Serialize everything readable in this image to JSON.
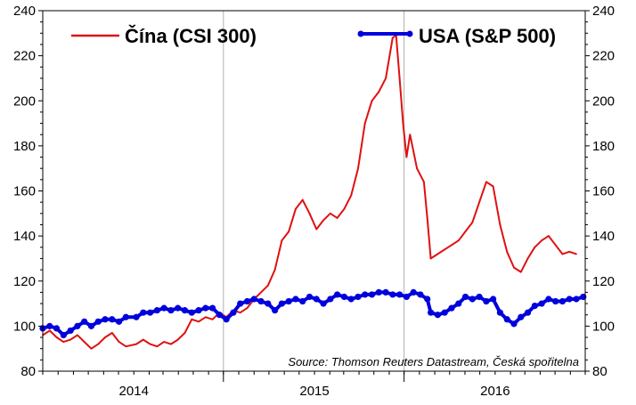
{
  "chart_data": {
    "type": "line",
    "title": "",
    "xlabel": "",
    "ylabel": "",
    "ylim": [
      80,
      240
    ],
    "y_ticks": [
      80,
      100,
      120,
      140,
      160,
      180,
      200,
      220,
      240
    ],
    "xlim": [
      "2013-07-01",
      "2016-07-01"
    ],
    "x_tick_labels": [
      {
        "label": "2014",
        "date": "2014-01-01"
      },
      {
        "label": "2015",
        "date": "2015-01-01"
      },
      {
        "label": "2016",
        "date": "2016-01-01"
      }
    ],
    "x_gridlines": [
      "2014-07-01",
      "2015-07-01"
    ],
    "grid": "vertical",
    "legend_position": "top",
    "source": "Source: Thomson Reuters Datastream, Česká spořitelna",
    "series": [
      {
        "name": "Čína (CSI 300)",
        "color": "#e01010",
        "marker": "none",
        "points": [
          [
            "2013-07-01",
            96
          ],
          [
            "2013-07-15",
            98
          ],
          [
            "2013-07-29",
            95
          ],
          [
            "2013-08-12",
            93
          ],
          [
            "2013-08-26",
            94
          ],
          [
            "2013-09-09",
            96
          ],
          [
            "2013-09-23",
            93
          ],
          [
            "2013-10-07",
            90
          ],
          [
            "2013-10-21",
            92
          ],
          [
            "2013-11-04",
            95
          ],
          [
            "2013-11-18",
            97
          ],
          [
            "2013-12-02",
            93
          ],
          [
            "2013-12-16",
            91
          ],
          [
            "2014-01-06",
            92
          ],
          [
            "2014-01-20",
            94
          ],
          [
            "2014-02-03",
            92
          ],
          [
            "2014-02-17",
            91
          ],
          [
            "2014-03-03",
            93
          ],
          [
            "2014-03-17",
            92
          ],
          [
            "2014-03-31",
            94
          ],
          [
            "2014-04-14",
            97
          ],
          [
            "2014-04-28",
            103
          ],
          [
            "2014-05-12",
            102
          ],
          [
            "2014-05-26",
            104
          ],
          [
            "2014-06-09",
            103
          ],
          [
            "2014-06-23",
            106
          ],
          [
            "2014-07-07",
            104
          ],
          [
            "2014-07-21",
            107
          ],
          [
            "2014-08-04",
            106
          ],
          [
            "2014-08-18",
            108
          ],
          [
            "2014-09-01",
            112
          ],
          [
            "2014-09-15",
            115
          ],
          [
            "2014-09-29",
            118
          ],
          [
            "2014-10-13",
            125
          ],
          [
            "2014-10-27",
            138
          ],
          [
            "2014-11-10",
            142
          ],
          [
            "2014-11-24",
            152
          ],
          [
            "2014-12-08",
            156
          ],
          [
            "2014-12-22",
            150
          ],
          [
            "2015-01-05",
            143
          ],
          [
            "2015-01-19",
            147
          ],
          [
            "2015-02-02",
            150
          ],
          [
            "2015-02-16",
            148
          ],
          [
            "2015-03-02",
            152
          ],
          [
            "2015-03-16",
            158
          ],
          [
            "2015-03-30",
            170
          ],
          [
            "2015-04-13",
            190
          ],
          [
            "2015-04-27",
            200
          ],
          [
            "2015-05-11",
            204
          ],
          [
            "2015-05-25",
            210
          ],
          [
            "2015-06-08",
            228
          ],
          [
            "2015-06-15",
            229
          ],
          [
            "2015-06-22",
            210
          ],
          [
            "2015-06-29",
            190
          ],
          [
            "2015-07-06",
            175
          ],
          [
            "2015-07-13",
            185
          ],
          [
            "2015-07-27",
            170
          ],
          [
            "2015-08-10",
            164
          ],
          [
            "2015-08-17",
            148
          ],
          [
            "2015-08-24",
            130
          ],
          [
            "2015-09-07",
            132
          ],
          [
            "2015-09-21",
            134
          ],
          [
            "2015-10-05",
            136
          ],
          [
            "2015-10-19",
            138
          ],
          [
            "2015-11-02",
            142
          ],
          [
            "2015-11-16",
            146
          ],
          [
            "2015-11-30",
            155
          ],
          [
            "2015-12-14",
            164
          ],
          [
            "2015-12-28",
            162
          ],
          [
            "2016-01-11",
            145
          ],
          [
            "2016-01-25",
            133
          ],
          [
            "2016-02-08",
            126
          ],
          [
            "2016-02-22",
            124
          ],
          [
            "2016-03-07",
            130
          ],
          [
            "2016-03-21",
            135
          ],
          [
            "2016-04-04",
            138
          ],
          [
            "2016-04-18",
            140
          ],
          [
            "2016-05-02",
            136
          ],
          [
            "2016-05-16",
            132
          ],
          [
            "2016-05-30",
            133
          ],
          [
            "2016-06-13",
            132
          ]
        ]
      },
      {
        "name": "USA (S&P 500)",
        "color": "#0000dd",
        "marker": "dot",
        "points": [
          [
            "2013-07-01",
            99
          ],
          [
            "2013-07-15",
            100
          ],
          [
            "2013-07-29",
            99
          ],
          [
            "2013-08-12",
            96
          ],
          [
            "2013-08-26",
            98
          ],
          [
            "2013-09-09",
            100
          ],
          [
            "2013-09-23",
            102
          ],
          [
            "2013-10-07",
            100
          ],
          [
            "2013-10-21",
            102
          ],
          [
            "2013-11-04",
            103
          ],
          [
            "2013-11-18",
            103
          ],
          [
            "2013-12-02",
            102
          ],
          [
            "2013-12-16",
            104
          ],
          [
            "2014-01-06",
            104
          ],
          [
            "2014-01-20",
            106
          ],
          [
            "2014-02-03",
            106
          ],
          [
            "2014-02-17",
            107
          ],
          [
            "2014-03-03",
            108
          ],
          [
            "2014-03-17",
            107
          ],
          [
            "2014-03-31",
            108
          ],
          [
            "2014-04-14",
            107
          ],
          [
            "2014-04-28",
            106
          ],
          [
            "2014-05-12",
            107
          ],
          [
            "2014-05-26",
            108
          ],
          [
            "2014-06-09",
            108
          ],
          [
            "2014-06-23",
            105
          ],
          [
            "2014-07-07",
            103
          ],
          [
            "2014-07-21",
            106
          ],
          [
            "2014-08-04",
            110
          ],
          [
            "2014-08-18",
            111
          ],
          [
            "2014-09-01",
            112
          ],
          [
            "2014-09-15",
            111
          ],
          [
            "2014-09-29",
            110
          ],
          [
            "2014-10-13",
            107
          ],
          [
            "2014-10-27",
            110
          ],
          [
            "2014-11-10",
            111
          ],
          [
            "2014-11-24",
            112
          ],
          [
            "2014-12-08",
            111
          ],
          [
            "2014-12-22",
            113
          ],
          [
            "2015-01-05",
            112
          ],
          [
            "2015-01-19",
            110
          ],
          [
            "2015-02-02",
            112
          ],
          [
            "2015-02-16",
            114
          ],
          [
            "2015-03-02",
            113
          ],
          [
            "2015-03-16",
            112
          ],
          [
            "2015-03-30",
            113
          ],
          [
            "2015-04-13",
            114
          ],
          [
            "2015-04-27",
            114
          ],
          [
            "2015-05-11",
            115
          ],
          [
            "2015-05-25",
            115
          ],
          [
            "2015-06-08",
            114
          ],
          [
            "2015-06-22",
            114
          ],
          [
            "2015-07-06",
            113
          ],
          [
            "2015-07-20",
            115
          ],
          [
            "2015-08-03",
            114
          ],
          [
            "2015-08-17",
            112
          ],
          [
            "2015-08-24",
            106
          ],
          [
            "2015-09-07",
            105
          ],
          [
            "2015-09-21",
            106
          ],
          [
            "2015-10-05",
            108
          ],
          [
            "2015-10-19",
            110
          ],
          [
            "2015-11-02",
            113
          ],
          [
            "2015-11-16",
            112
          ],
          [
            "2015-11-30",
            113
          ],
          [
            "2015-12-14",
            111
          ],
          [
            "2015-12-28",
            112
          ],
          [
            "2016-01-11",
            106
          ],
          [
            "2016-01-25",
            103
          ],
          [
            "2016-02-08",
            101
          ],
          [
            "2016-02-22",
            104
          ],
          [
            "2016-03-07",
            106
          ],
          [
            "2016-03-21",
            109
          ],
          [
            "2016-04-04",
            110
          ],
          [
            "2016-04-18",
            112
          ],
          [
            "2016-05-02",
            111
          ],
          [
            "2016-05-16",
            111
          ],
          [
            "2016-05-30",
            112
          ],
          [
            "2016-06-13",
            112
          ],
          [
            "2016-06-27",
            113
          ]
        ]
      }
    ]
  }
}
